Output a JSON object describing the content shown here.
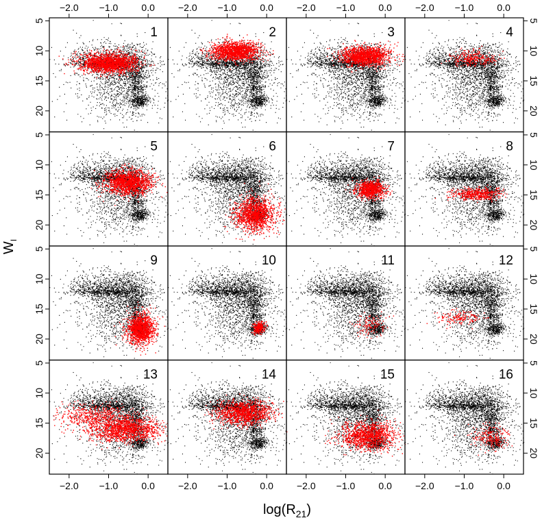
{
  "chart_data": {
    "type": "scatter",
    "grid": false,
    "layout": "4x4 panel grid (lattice)",
    "xlabel": {
      "main": "log(R",
      "sub": "21",
      "close": ")"
    },
    "ylabel": {
      "main": "W",
      "sub": "I"
    },
    "xlim": [
      -2.5,
      0.5
    ],
    "ylim": [
      23.5,
      4.5
    ],
    "y_inverted": true,
    "x_ticks": [
      -2.0,
      -1.0,
      0.0
    ],
    "x_tick_labels": [
      "−2.0",
      "−1.0",
      "0.0"
    ],
    "y_ticks": [
      5,
      10,
      15,
      20
    ],
    "y_tick_labels": [
      "5",
      "10",
      "15",
      "20"
    ],
    "colors": {
      "background_points": "#000000",
      "highlight_points": "#ff0000"
    },
    "background_population": {
      "description": "full sample shown in every panel (black points)",
      "clusters": [
        {
          "x": -0.7,
          "y": 12.0,
          "sx": 0.45,
          "sy": 1.7,
          "weight": 0.36
        },
        {
          "x": -1.05,
          "y": 12.1,
          "sx": 0.45,
          "sy": 0.35,
          "weight": 0.14
        },
        {
          "x": -0.3,
          "y": 15.2,
          "sx": 0.1,
          "sy": 2.2,
          "weight": 0.14
        },
        {
          "x": -0.2,
          "y": 18.3,
          "sx": 0.12,
          "sy": 0.5,
          "weight": 0.08
        },
        {
          "x": -0.7,
          "y": 17.0,
          "sx": 0.5,
          "sy": 2.2,
          "weight": 0.16
        },
        {
          "x": -1.6,
          "y": 10.8,
          "sx": 0.25,
          "sy": 0.8,
          "weight": 0.04
        },
        {
          "x": -1.0,
          "y": 14.5,
          "sx": 0.8,
          "sy": 3.5,
          "weight": 0.08
        }
      ]
    },
    "panels": [
      {
        "label": "1",
        "highlight": [
          {
            "x": -1.0,
            "y": 12.0,
            "sx": 0.35,
            "sy": 0.8,
            "n": 1700
          }
        ]
      },
      {
        "label": "2",
        "highlight": [
          {
            "x": -0.8,
            "y": 10.0,
            "sx": 0.3,
            "sy": 0.8,
            "n": 1400
          }
        ]
      },
      {
        "label": "3",
        "highlight": [
          {
            "x": -0.5,
            "y": 10.8,
            "sx": 0.3,
            "sy": 0.8,
            "n": 1400
          }
        ]
      },
      {
        "label": "4",
        "highlight": [
          {
            "x": -0.8,
            "y": 11.2,
            "sx": 0.3,
            "sy": 0.7,
            "n": 250
          }
        ]
      },
      {
        "label": "5",
        "highlight": [
          {
            "x": -0.5,
            "y": 12.8,
            "sx": 0.3,
            "sy": 1.0,
            "n": 1400
          }
        ]
      },
      {
        "label": "6",
        "highlight": [
          {
            "x": -0.3,
            "y": 18.2,
            "sx": 0.25,
            "sy": 1.4,
            "n": 1300
          }
        ]
      },
      {
        "label": "7",
        "highlight": [
          {
            "x": -0.38,
            "y": 14.0,
            "sx": 0.18,
            "sy": 0.7,
            "n": 800
          }
        ]
      },
      {
        "label": "8",
        "highlight": [
          {
            "x": -0.65,
            "y": 14.8,
            "sx": 0.3,
            "sy": 0.5,
            "n": 500
          }
        ]
      },
      {
        "label": "9",
        "highlight": [
          {
            "x": -0.2,
            "y": 18.2,
            "sx": 0.18,
            "sy": 1.3,
            "n": 1300
          }
        ]
      },
      {
        "label": "10",
        "highlight": [
          {
            "x": -0.2,
            "y": 18.0,
            "sx": 0.08,
            "sy": 0.5,
            "n": 250
          }
        ]
      },
      {
        "label": "11",
        "highlight": [
          {
            "x": -0.35,
            "y": 17.5,
            "sx": 0.2,
            "sy": 1.0,
            "n": 120
          }
        ]
      },
      {
        "label": "12",
        "highlight": [
          {
            "x": -1.1,
            "y": 16.5,
            "sx": 0.3,
            "sy": 0.6,
            "n": 160
          }
        ]
      },
      {
        "label": "13",
        "highlight": [
          {
            "x": -0.6,
            "y": 16.0,
            "sx": 0.45,
            "sy": 1.0,
            "n": 1300
          },
          {
            "x": -1.3,
            "y": 13.8,
            "sx": 0.5,
            "sy": 1.0,
            "n": 500
          }
        ]
      },
      {
        "label": "14",
        "highlight": [
          {
            "x": -0.6,
            "y": 13.2,
            "sx": 0.35,
            "sy": 1.0,
            "n": 1200
          }
        ]
      },
      {
        "label": "15",
        "highlight": [
          {
            "x": -0.45,
            "y": 17.0,
            "sx": 0.35,
            "sy": 1.2,
            "n": 1200
          }
        ]
      },
      {
        "label": "16",
        "highlight": [
          {
            "x": -0.35,
            "y": 17.3,
            "sx": 0.22,
            "sy": 1.0,
            "n": 220
          }
        ]
      }
    ]
  }
}
